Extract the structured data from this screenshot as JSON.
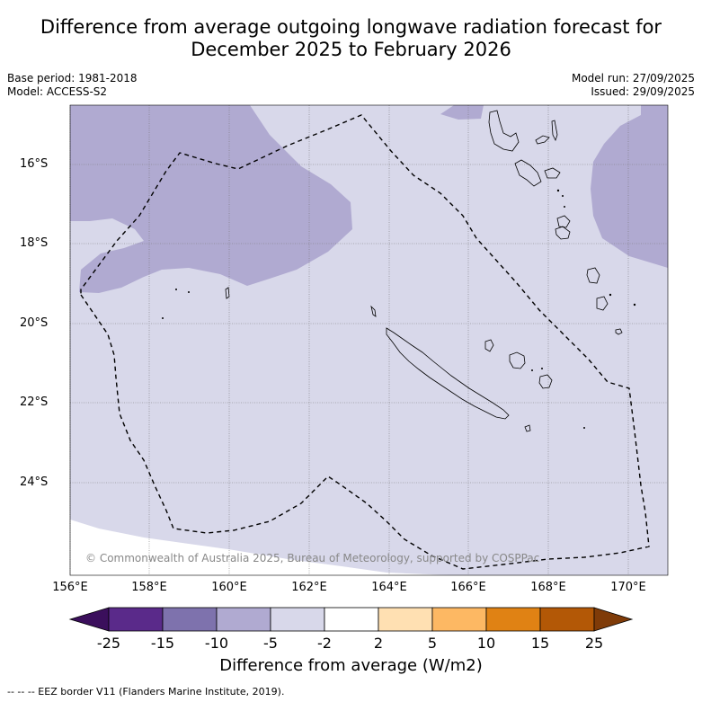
{
  "header": {
    "title_line1": "Difference from average outgoing longwave radiation forecast for",
    "title_line2": "December 2025 to February 2026"
  },
  "info": {
    "base_period": "Base period: 1981-2018",
    "model": "Model: ACCESS-S2",
    "model_run": "Model run: 27/09/2025",
    "issued": "Issued: 29/09/2025"
  },
  "map": {
    "lat_labels": [
      "16°S",
      "18°S",
      "20°S",
      "22°S",
      "24°S"
    ],
    "lon_labels": [
      "156°E",
      "158°E",
      "160°E",
      "162°E",
      "164°E",
      "166°E",
      "168°E",
      "170°E"
    ],
    "copyright": "© Commonwealth of Australia 2025, Bureau of Meteorology, supported by COSPPac",
    "colors": {
      "dark_purple": "#b0aad1",
      "light_purple": "#d8d8ea",
      "white": "#ffffff"
    }
  },
  "colorbar": {
    "tick_labels": [
      "-25",
      "-15",
      "-10",
      "-5",
      "-2",
      "2",
      "5",
      "10",
      "15",
      "25"
    ],
    "colors": [
      "#3b0f5c",
      "#5a2a8a",
      "#7e72ad",
      "#b0aad1",
      "#d8d8ea",
      "#ffffff",
      "#ffe0b2",
      "#fdb863",
      "#e08214",
      "#b35806",
      "#7f3b08"
    ],
    "title": "Difference from average (W/m2)"
  },
  "footer": {
    "eez_note": "--  --  -- EEZ border V11 (Flanders Marine Institute, 2019)."
  }
}
